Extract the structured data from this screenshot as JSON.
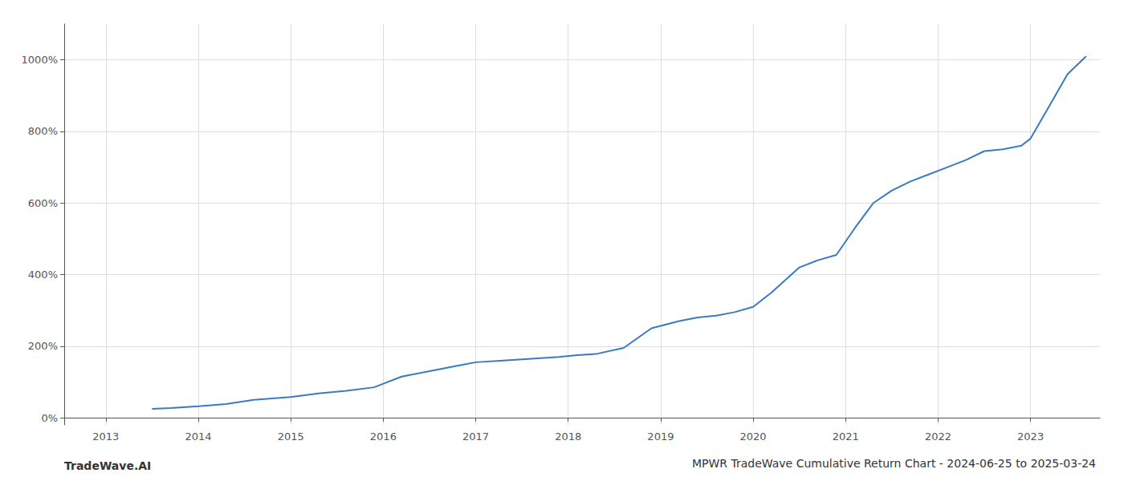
{
  "chart_data": {
    "type": "line",
    "title": "MPWR TradeWave Cumulative Return Chart - 2024-06-25 to 2025-03-24",
    "annotations": [
      "TradeWave.AI"
    ],
    "color": "#3a7abf",
    "grid": true,
    "x": [
      2013.5,
      2013.7,
      2014.0,
      2014.3,
      2014.6,
      2015.0,
      2015.3,
      2015.6,
      2015.9,
      2016.2,
      2016.5,
      2016.8,
      2017.0,
      2017.3,
      2017.6,
      2017.9,
      2018.1,
      2018.3,
      2018.6,
      2018.9,
      2019.2,
      2019.4,
      2019.6,
      2019.8,
      2020.0,
      2020.2,
      2020.5,
      2020.7,
      2020.9,
      2021.1,
      2021.3,
      2021.5,
      2021.7,
      2021.9,
      2022.1,
      2022.3,
      2022.5,
      2022.7,
      2022.9,
      2023.0,
      2023.2,
      2023.4,
      2023.6
    ],
    "values": [
      25,
      27,
      32,
      38,
      50,
      58,
      68,
      75,
      85,
      115,
      130,
      145,
      155,
      160,
      165,
      170,
      175,
      178,
      195,
      250,
      270,
      280,
      285,
      295,
      310,
      350,
      420,
      440,
      455,
      530,
      600,
      635,
      660,
      680,
      700,
      720,
      745,
      750,
      760,
      780,
      870,
      960,
      1010
    ],
    "xlim": [
      2012.55,
      2023.75
    ],
    "xticks": [
      2013,
      2014,
      2015,
      2016,
      2017,
      2018,
      2019,
      2020,
      2021,
      2022,
      2023
    ],
    "ylim": [
      -20,
      1100
    ],
    "yticks": [
      {
        "value": 0,
        "label": "0%"
      },
      {
        "value": 200,
        "label": "200%"
      },
      {
        "value": 400,
        "label": "400%"
      },
      {
        "value": 600,
        "label": "600%"
      },
      {
        "value": 800,
        "label": "800%"
      },
      {
        "value": 1000,
        "label": "1000%"
      }
    ]
  }
}
